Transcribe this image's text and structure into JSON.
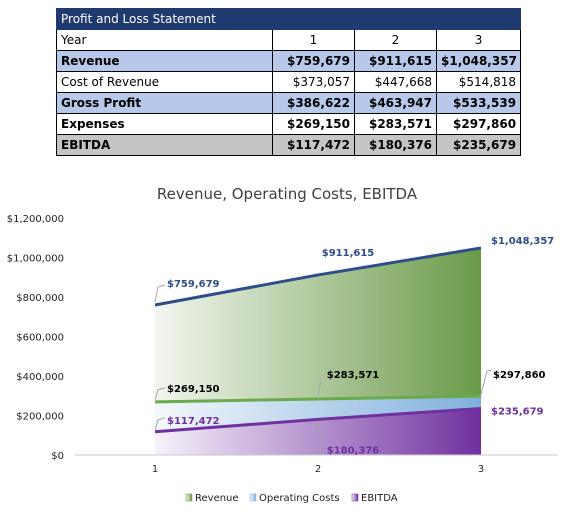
{
  "table": {
    "title": "Profit and Loss Statement",
    "header": [
      "Year",
      "1",
      "2",
      "3"
    ],
    "rows": [
      [
        "Revenue",
        "$759,679",
        "$911,615",
        "$1,048,357"
      ],
      [
        "Cost of Revenue",
        "$373,057",
        "$447,668",
        "$514,818"
      ],
      [
        "Gross Profit",
        "$386,622",
        "$463,947",
        "$533,539"
      ],
      [
        "Expenses",
        "$269,150",
        "$283,571",
        "$297,860"
      ],
      [
        "EBITDA",
        "$117,472",
        "$180,376",
        "$235,679"
      ]
    ]
  },
  "chart_data": {
    "type": "area",
    "title": "Revenue, Operating Costs, EBITDA",
    "categories": [
      "1",
      "2",
      "3"
    ],
    "ylim": [
      0,
      1200000
    ],
    "yticks": [
      "$0",
      "$200,000",
      "$400,000",
      "$600,000",
      "$800,000",
      "$1,000,000",
      "$1,200,000"
    ],
    "legend_position": "bottom",
    "grid": false,
    "series": [
      {
        "name": "Revenue",
        "values": [
          759679,
          911615,
          1048357
        ],
        "labels": [
          "$759,679",
          "$911,615",
          "$1,048,357"
        ],
        "line_color": "#2e4d8a",
        "label_color": "#2e4d8a",
        "fill_colors": [
          "#f3f6f0",
          "#6a9a48"
        ]
      },
      {
        "name": "Operating Costs",
        "values": [
          269150,
          283571,
          297860
        ],
        "labels": [
          "$269,150",
          "$283,571",
          "$297,860"
        ],
        "line_color": "#6aaa4a",
        "label_color": "#000000",
        "fill_colors": [
          "#f4f8fc",
          "#7fb0dc"
        ]
      },
      {
        "name": "EBITDA",
        "values": [
          117472,
          180376,
          235679
        ],
        "labels": [
          "$117,472",
          "$180,376",
          "$235,679"
        ],
        "line_color": "#7030a0",
        "label_color": "#7030a0",
        "fill_colors": [
          "#f6f2fa",
          "#7030a0"
        ]
      }
    ]
  }
}
